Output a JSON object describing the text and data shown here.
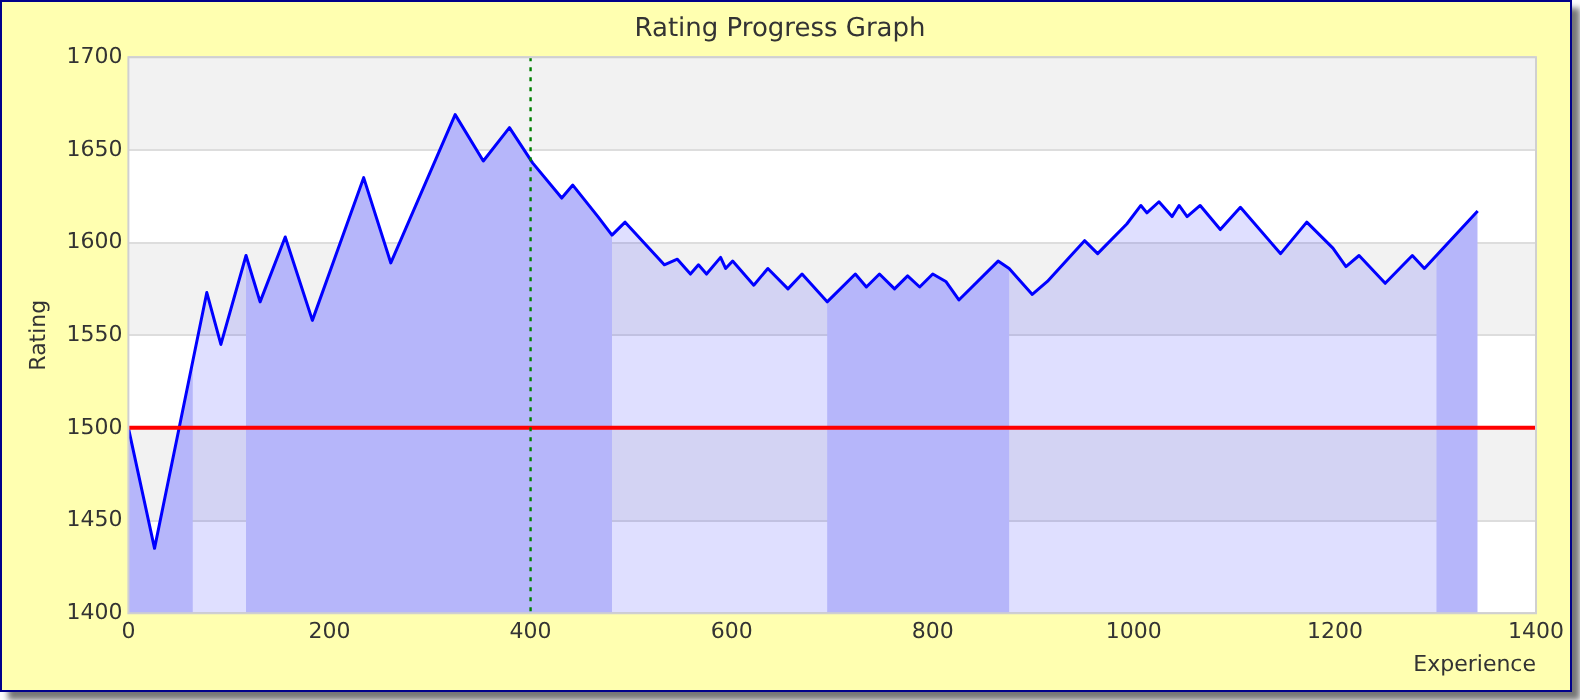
{
  "chart_data": {
    "type": "area",
    "title": "Rating Progress Graph",
    "xlabel": "Experience",
    "ylabel": "Rating",
    "x": [
      0,
      26,
      78,
      92,
      117,
      131,
      156,
      183,
      234,
      261,
      325,
      353,
      379,
      402,
      431,
      442,
      467,
      481,
      494,
      533,
      546,
      559,
      567,
      575,
      589,
      594,
      601,
      622,
      636,
      656,
      670,
      695,
      723,
      734,
      747,
      762,
      775,
      787,
      800,
      813,
      826,
      865,
      876,
      899,
      914,
      951,
      964,
      993,
      1007,
      1013,
      1025,
      1038,
      1045,
      1053,
      1066,
      1086,
      1106,
      1146,
      1172,
      1198,
      1211,
      1224,
      1250,
      1277,
      1289,
      1342
    ],
    "series": [
      {
        "color": "#0000ff",
        "values": [
          1500,
          1435,
          1573,
          1545,
          1593,
          1568,
          1603,
          1558,
          1635,
          1589,
          1669,
          1644,
          1662,
          1643,
          1624,
          1631,
          1614,
          1604,
          1611,
          1588,
          1591,
          1583,
          1588,
          1583,
          1592,
          1586,
          1590,
          1577,
          1586,
          1575,
          1583,
          1568,
          1583,
          1576,
          1583,
          1575,
          1582,
          1576,
          1583,
          1579,
          1569,
          1590,
          1586,
          1572,
          1579,
          1601,
          1594,
          1610,
          1620,
          1616,
          1622,
          1614,
          1620,
          1614,
          1620,
          1607,
          1619,
          1594,
          1611,
          1597,
          1587,
          1593,
          1578,
          1593,
          1586,
          1617
        ]
      }
    ],
    "xlim": [
      0,
      1400
    ],
    "xticks": [
      0,
      200,
      400,
      600,
      800,
      1000,
      1200,
      1400
    ],
    "ylim": [
      1400,
      1700
    ],
    "yticks": [
      1400,
      1450,
      1500,
      1550,
      1600,
      1650,
      1700
    ],
    "grid": "y",
    "legend": false,
    "marker": "none",
    "line_style": "solid",
    "ref_lines": [
      {
        "axis": "y",
        "value": 1500,
        "color": "#ff0000",
        "line_style": "solid"
      },
      {
        "axis": "x",
        "value": 400,
        "color": "#008000",
        "line_style": "dotted"
      }
    ],
    "bands": [
      {
        "axis": "x",
        "from": 0,
        "to": 64,
        "color": "#d0d0fa"
      },
      {
        "axis": "x",
        "from": 117,
        "to": 481,
        "color": "#d0d0fa"
      },
      {
        "axis": "x",
        "from": 695,
        "to": 876,
        "color": "#d0d0fa"
      },
      {
        "axis": "x",
        "from": 1301,
        "to": 1342,
        "color": "#d0d0fa"
      }
    ]
  }
}
